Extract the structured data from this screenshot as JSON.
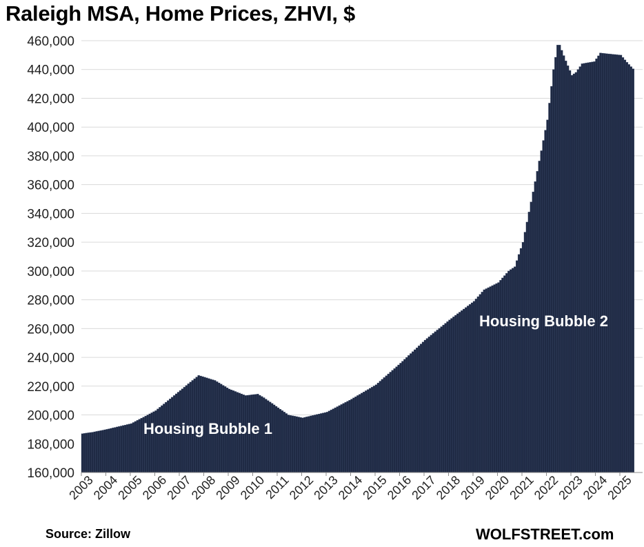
{
  "chart_data": {
    "type": "bar",
    "title": "Raleigh MSA, Home Prices, ZHVI, $",
    "xlabel": "",
    "ylabel": "",
    "ylim": [
      160000,
      460000
    ],
    "yticks": [
      "160,000",
      "180,000",
      "200,000",
      "220,000",
      "240,000",
      "260,000",
      "280,000",
      "300,000",
      "320,000",
      "340,000",
      "360,000",
      "380,000",
      "400,000",
      "420,000",
      "440,000",
      "460,000"
    ],
    "xticks": [
      "2003",
      "2004",
      "2005",
      "2006",
      "2007",
      "2008",
      "2009",
      "2010",
      "2011",
      "2012",
      "2013",
      "2014",
      "2015",
      "2016",
      "2017",
      "2018",
      "2019",
      "2020",
      "2021",
      "2022",
      "2023",
      "2024",
      "2025"
    ],
    "grid": true,
    "bar_color": "#1f2a44",
    "frequency": "monthly",
    "start": "2003-01",
    "end": "2025-07",
    "anchor_points": [
      {
        "date": "2003-01",
        "value": 187000
      },
      {
        "date": "2003-06",
        "value": 188000
      },
      {
        "date": "2004-01",
        "value": 190000
      },
      {
        "date": "2005-01",
        "value": 194000
      },
      {
        "date": "2006-01",
        "value": 203000
      },
      {
        "date": "2007-01",
        "value": 217000
      },
      {
        "date": "2007-10",
        "value": 227500
      },
      {
        "date": "2008-06",
        "value": 224000
      },
      {
        "date": "2009-01",
        "value": 218000
      },
      {
        "date": "2009-09",
        "value": 213500
      },
      {
        "date": "2010-03",
        "value": 214500
      },
      {
        "date": "2010-06",
        "value": 212000
      },
      {
        "date": "2011-01",
        "value": 205000
      },
      {
        "date": "2011-06",
        "value": 200000
      },
      {
        "date": "2012-01",
        "value": 198000
      },
      {
        "date": "2013-01",
        "value": 202000
      },
      {
        "date": "2014-01",
        "value": 211000
      },
      {
        "date": "2015-01",
        "value": 221000
      },
      {
        "date": "2016-01",
        "value": 236000
      },
      {
        "date": "2017-01",
        "value": 252000
      },
      {
        "date": "2018-01",
        "value": 266000
      },
      {
        "date": "2019-01",
        "value": 279000
      },
      {
        "date": "2019-06",
        "value": 287000
      },
      {
        "date": "2020-01",
        "value": 292000
      },
      {
        "date": "2020-06",
        "value": 300000
      },
      {
        "date": "2020-09",
        "value": 303000
      },
      {
        "date": "2021-01",
        "value": 320000
      },
      {
        "date": "2021-06",
        "value": 355000
      },
      {
        "date": "2022-01",
        "value": 405000
      },
      {
        "date": "2022-04",
        "value": 440000
      },
      {
        "date": "2022-06",
        "value": 457000
      },
      {
        "date": "2022-07",
        "value": 457000
      },
      {
        "date": "2022-10",
        "value": 446000
      },
      {
        "date": "2023-01",
        "value": 436000
      },
      {
        "date": "2023-03",
        "value": 438000
      },
      {
        "date": "2023-06",
        "value": 444000
      },
      {
        "date": "2023-12",
        "value": 445500
      },
      {
        "date": "2024-03",
        "value": 451500
      },
      {
        "date": "2024-06",
        "value": 451000
      },
      {
        "date": "2025-01",
        "value": 450000
      },
      {
        "date": "2025-04",
        "value": 445000
      },
      {
        "date": "2025-07",
        "value": 440500
      }
    ],
    "annotations": [
      "Housing Bubble 1",
      "Housing Bubble 2"
    ]
  },
  "footer": {
    "source": "Source: Zillow",
    "brand": "WOLFSTREET.com"
  }
}
